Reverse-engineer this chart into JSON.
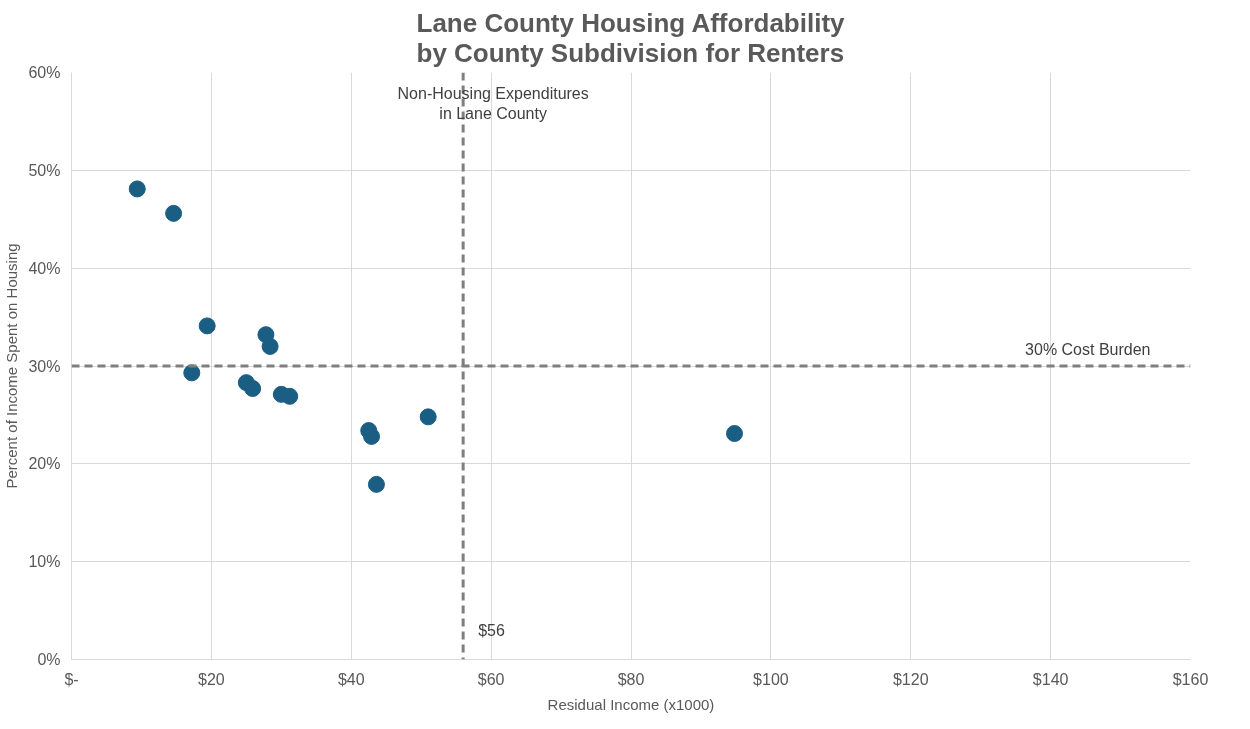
{
  "chart_data": {
    "type": "scatter",
    "title": "Lane County Housing Affordability\nby County Subdivision for Renters",
    "xlabel": "Residual Income (x1000)",
    "ylabel": "Percent of Income Spent on Housing",
    "x": [
      9.4,
      14.6,
      19.4,
      17.2,
      27.8,
      28.4,
      25.0,
      25.9,
      30.0,
      31.2,
      42.5,
      42.9,
      51.0,
      43.6,
      94.8
    ],
    "values": [
      48.1,
      45.6,
      34.1,
      29.3,
      33.2,
      32.0,
      28.3,
      27.7,
      27.1,
      26.9,
      23.4,
      22.8,
      24.8,
      17.9,
      23.1
    ],
    "color": "#1b5e84",
    "marker": "circle",
    "xlim": [
      0,
      160
    ],
    "ylim": [
      0,
      60
    ],
    "xticks": [
      {
        "value": 0,
        "label": "$-"
      },
      {
        "value": 20,
        "label": "$20"
      },
      {
        "value": 40,
        "label": "$40"
      },
      {
        "value": 60,
        "label": "$60"
      },
      {
        "value": 80,
        "label": "$80"
      },
      {
        "value": 100,
        "label": "$100"
      },
      {
        "value": 120,
        "label": "$120"
      },
      {
        "value": 140,
        "label": "$140"
      },
      {
        "value": 160,
        "label": "$160"
      }
    ],
    "yticks": [
      {
        "value": 0,
        "label": "0%"
      },
      {
        "value": 10,
        "label": "10%"
      },
      {
        "value": 20,
        "label": "20%"
      },
      {
        "value": 30,
        "label": "30%"
      },
      {
        "value": 40,
        "label": "40%"
      },
      {
        "value": 50,
        "label": "50%"
      },
      {
        "value": 60,
        "label": "60%"
      }
    ],
    "ref_lines": [
      {
        "axis": "x",
        "value": 56,
        "label": "Non-Housing Expenditures\nin Lane County",
        "color": "#7f7f7f",
        "line_style": "dashed"
      },
      {
        "axis": "y",
        "value": 30,
        "label": "30% Cost Burden",
        "color": "#7f7f7f",
        "line_style": "dashed"
      }
    ],
    "annotations": [
      {
        "text": "$56",
        "x": 56,
        "y": 3
      }
    ],
    "grid": true
  }
}
